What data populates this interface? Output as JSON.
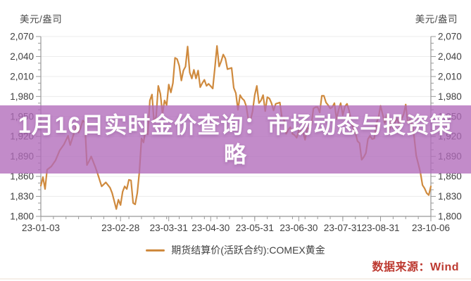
{
  "title_overlay": {
    "text": "1月16日实时金价查询：市场动态与投资策略",
    "lines": [
      "1月16日实时金价查询：市场动态与投资策",
      "略"
    ],
    "background_color": "rgba(177,106,186,0.78)",
    "text_color": "#ffffff"
  },
  "legend": {
    "label": "期货结算价(活跃合约):COMEX黄金",
    "swatch_color": "#cf8a3e"
  },
  "source": {
    "text": "数据来源：Wind",
    "color": "#bd3a31"
  },
  "chart_data": {
    "type": "line",
    "title": "",
    "xlabel": "",
    "ylabel": "美元/盎司",
    "unit_label_left": "美元/盎司",
    "unit_label_right": "美元/盎司",
    "ylim": [
      1800,
      2070
    ],
    "y_tick_interval": 30,
    "y_minor_tick_interval": 10,
    "y_tick_labels": [
      "2,070",
      "2,040",
      "2,010",
      "1,980",
      "1,950",
      "1,920",
      "1,890",
      "1,860",
      "1,830",
      "1,800"
    ],
    "x_tick_labels": [
      "23-01-03",
      "23-02-28",
      "23-03-31",
      "23-04-30",
      "23-05-31",
      "23-06-30",
      "23-07-31",
      "23-08-31",
      "23-10-06"
    ],
    "x_tick_positions": [
      0,
      38,
      61,
      81,
      102,
      123,
      144,
      162,
      186
    ],
    "x_max_index": 186,
    "grid": "horizontal",
    "legend_position": "bottom",
    "line_color": "#cf8a3e",
    "axis_color": "#999999",
    "grid_color": "#ececec",
    "tick_label_color": "#404040",
    "series": [
      {
        "name": "期货结算价(活跃合约):COMEX黄金",
        "points": [
          [
            0,
            1846
          ],
          [
            1,
            1859
          ],
          [
            2,
            1841
          ],
          [
            3,
            1870
          ],
          [
            5,
            1875
          ],
          [
            7,
            1884
          ],
          [
            9,
            1899
          ],
          [
            11,
            1908
          ],
          [
            13,
            1921
          ],
          [
            14,
            1907
          ],
          [
            16,
            1927
          ],
          [
            17,
            1937
          ],
          [
            18,
            1926
          ],
          [
            19,
            1933
          ],
          [
            20,
            1944
          ],
          [
            21,
            1941
          ],
          [
            22,
            1877
          ],
          [
            23,
            1883
          ],
          [
            24,
            1890
          ],
          [
            26,
            1874
          ],
          [
            27,
            1865
          ],
          [
            29,
            1845
          ],
          [
            31,
            1851
          ],
          [
            33,
            1843
          ],
          [
            34,
            1835
          ],
          [
            36,
            1811
          ],
          [
            37,
            1825
          ],
          [
            38,
            1817
          ],
          [
            39,
            1837
          ],
          [
            40,
            1845
          ],
          [
            41,
            1841
          ],
          [
            42,
            1855
          ],
          [
            43,
            1854
          ],
          [
            44,
            1820
          ],
          [
            45,
            1818
          ],
          [
            46,
            1835
          ],
          [
            47,
            1867
          ],
          [
            48,
            1917
          ],
          [
            49,
            1911
          ],
          [
            50,
            1931
          ],
          [
            51,
            1923
          ],
          [
            52,
            1974
          ],
          [
            53,
            1983
          ],
          [
            54,
            1941
          ],
          [
            55,
            1950
          ],
          [
            56,
            1996
          ],
          [
            57,
            1984
          ],
          [
            58,
            1954
          ],
          [
            59,
            1974
          ],
          [
            60,
            1967
          ],
          [
            61,
            1998
          ],
          [
            62,
            1986
          ],
          [
            63,
            2000
          ],
          [
            64,
            2038
          ],
          [
            65,
            2036
          ],
          [
            66,
            2026
          ],
          [
            67,
            2004
          ],
          [
            68,
            2019
          ],
          [
            69,
            2025
          ],
          [
            70,
            2055
          ],
          [
            71,
            2016
          ],
          [
            72,
            2007
          ],
          [
            73,
            2020
          ],
          [
            74,
            2007
          ],
          [
            75,
            2019
          ],
          [
            76,
            1994
          ],
          [
            77,
            2000
          ],
          [
            78,
            2005
          ],
          [
            79,
            1996
          ],
          [
            80,
            1999
          ],
          [
            82,
            1992
          ],
          [
            83,
            2023
          ],
          [
            84,
            2056
          ],
          [
            85,
            2025
          ],
          [
            86,
            2033
          ],
          [
            87,
            2043
          ],
          [
            88,
            2037
          ],
          [
            89,
            2021
          ],
          [
            91,
            2023
          ],
          [
            92,
            1993
          ],
          [
            93,
            1985
          ],
          [
            94,
            1960
          ],
          [
            95,
            1982
          ],
          [
            96,
            1977
          ],
          [
            97,
            1974
          ],
          [
            98,
            1965
          ],
          [
            99,
            1944
          ],
          [
            100,
            1944
          ],
          [
            101,
            1958
          ],
          [
            102,
            1982
          ],
          [
            103,
            1996
          ],
          [
            104,
            1970
          ],
          [
            105,
            1974
          ],
          [
            106,
            1982
          ],
          [
            107,
            1958
          ],
          [
            108,
            1979
          ],
          [
            109,
            1977
          ],
          [
            110,
            1970
          ],
          [
            111,
            1959
          ],
          [
            112,
            1969
          ],
          [
            114,
            1971
          ],
          [
            115,
            1948
          ],
          [
            116,
            1945
          ],
          [
            117,
            1924
          ],
          [
            118,
            1930
          ],
          [
            119,
            1934
          ],
          [
            120,
            1924
          ],
          [
            121,
            1922
          ],
          [
            122,
            1918
          ],
          [
            123,
            1929
          ],
          [
            125,
            1927
          ],
          [
            126,
            1915
          ],
          [
            127,
            1933
          ],
          [
            128,
            1931
          ],
          [
            129,
            1937
          ],
          [
            130,
            1962
          ],
          [
            131,
            1964
          ],
          [
            132,
            1964
          ],
          [
            133,
            1956
          ],
          [
            134,
            1981
          ],
          [
            135,
            1981
          ],
          [
            136,
            1971
          ],
          [
            137,
            1967
          ],
          [
            138,
            1962
          ],
          [
            139,
            1964
          ],
          [
            140,
            1970
          ],
          [
            141,
            1946
          ],
          [
            142,
            1960
          ],
          [
            143,
            1970
          ],
          [
            144,
            1952
          ],
          [
            145,
            1965
          ],
          [
            146,
            1969
          ],
          [
            147,
            1959
          ],
          [
            148,
            1942
          ],
          [
            149,
            1932
          ],
          [
            150,
            1925
          ],
          [
            151,
            1913
          ],
          [
            152,
            1910
          ],
          [
            153,
            1885
          ],
          [
            154,
            1889
          ],
          [
            155,
            1895
          ],
          [
            156,
            1916
          ],
          [
            157,
            1921
          ],
          [
            158,
            1916
          ],
          [
            159,
            1917
          ],
          [
            160,
            1940
          ],
          [
            161,
            1948
          ],
          [
            162,
            1966
          ],
          [
            163,
            1953
          ],
          [
            164,
            1940
          ],
          [
            165,
            1953
          ],
          [
            166,
            1925
          ],
          [
            167,
            1944
          ],
          [
            168,
            1932
          ],
          [
            169,
            1942
          ],
          [
            170,
            1947
          ],
          [
            171,
            1934
          ],
          [
            172,
            1946
          ],
          [
            173,
            1953
          ],
          [
            174,
            1968
          ],
          [
            175,
            1940
          ],
          [
            176,
            1946
          ],
          [
            177,
            1937
          ],
          [
            178,
            1920
          ],
          [
            179,
            1891
          ],
          [
            180,
            1879
          ],
          [
            181,
            1866
          ],
          [
            182,
            1847
          ],
          [
            183,
            1842
          ],
          [
            184,
            1835
          ],
          [
            185,
            1832
          ],
          [
            186,
            1845
          ]
        ]
      }
    ]
  }
}
